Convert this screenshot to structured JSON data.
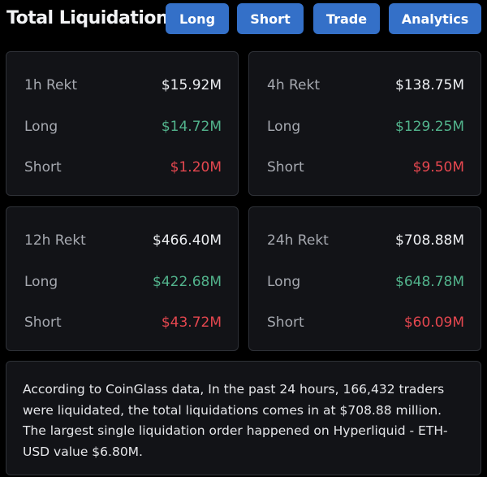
{
  "header": {
    "title": "Total Liquidations"
  },
  "buttons": [
    {
      "label": "Long"
    },
    {
      "label": "Short"
    },
    {
      "label": "Trade"
    },
    {
      "label": "Analytics"
    }
  ],
  "cards": [
    {
      "label": "1h Rekt",
      "total": "$15.92M",
      "long_label": "Long",
      "long": "$14.72M",
      "short_label": "Short",
      "short": "$1.20M"
    },
    {
      "label": "4h Rekt",
      "total": "$138.75M",
      "long_label": "Long",
      "long": "$129.25M",
      "short_label": "Short",
      "short": "$9.50M"
    },
    {
      "label": "12h Rekt",
      "total": "$466.40M",
      "long_label": "Long",
      "long": "$422.68M",
      "short_label": "Short",
      "short": "$43.72M"
    },
    {
      "label": "24h Rekt",
      "total": "$708.88M",
      "long_label": "Long",
      "long": "$648.78M",
      "short_label": "Short",
      "short": "$60.09M"
    }
  ],
  "summary": {
    "line1": "According to CoinGlass data, In the past 24 hours, 166,432 traders were liquidated, the total liquidations comes in at $708.88 million.",
    "line2": "The largest single liquidation order happened on Hyperliquid - ETH-USD value $6.80M."
  },
  "colors": {
    "accent": "#3470c8",
    "long": "#52b38c",
    "short": "#e5474f",
    "background": "#000000",
    "card": "#121317"
  }
}
